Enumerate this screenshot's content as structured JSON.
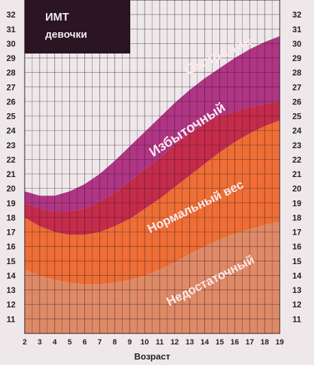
{
  "chart_data": {
    "type": "area",
    "title": "ИМТ",
    "subtitle": "девочки",
    "xlabel": "Возраст",
    "ylabel": "",
    "x": [
      2,
      3,
      4,
      5,
      6,
      7,
      8,
      9,
      10,
      11,
      12,
      13,
      14,
      15,
      16,
      17,
      18,
      19
    ],
    "xlim": [
      2,
      19
    ],
    "ylim": [
      10,
      33
    ],
    "y_ticks": [
      11,
      12,
      13,
      14,
      15,
      16,
      17,
      18,
      19,
      20,
      21,
      22,
      23,
      24,
      25,
      26,
      27,
      28,
      29,
      30,
      31,
      32
    ],
    "grid": true,
    "boundaries": [
      {
        "values": [
          14.4,
          14.0,
          13.7,
          13.5,
          13.4,
          13.4,
          13.5,
          13.7,
          14.0,
          14.4,
          14.9,
          15.5,
          16.0,
          16.5,
          16.9,
          17.2,
          17.5,
          17.7
        ]
      },
      {
        "values": [
          18.0,
          17.4,
          17.0,
          16.8,
          16.8,
          17.0,
          17.4,
          17.9,
          18.6,
          19.3,
          20.1,
          20.9,
          21.7,
          22.5,
          23.2,
          23.8,
          24.3,
          24.7
        ]
      },
      {
        "values": [
          19.0,
          18.6,
          18.4,
          18.4,
          18.6,
          19.1,
          19.7,
          20.5,
          21.3,
          22.1,
          23.0,
          23.8,
          24.5,
          25.0,
          25.3,
          25.6,
          25.8,
          26.0
        ]
      },
      {
        "values": [
          19.8,
          19.5,
          19.5,
          19.8,
          20.3,
          21.0,
          21.9,
          22.9,
          23.9,
          24.9,
          25.9,
          26.8,
          27.6,
          28.3,
          29.0,
          29.6,
          30.1,
          30.5
        ]
      }
    ],
    "bands": [
      {
        "name": "Недостаточный",
        "color": "#df8a66"
      },
      {
        "name": "Нормальный вес",
        "color": "#ee6e35"
      },
      {
        "name": "Избыточный",
        "color": "#c52b4a"
      },
      {
        "name": "Ожирение",
        "color": "#b03584"
      }
    ]
  }
}
